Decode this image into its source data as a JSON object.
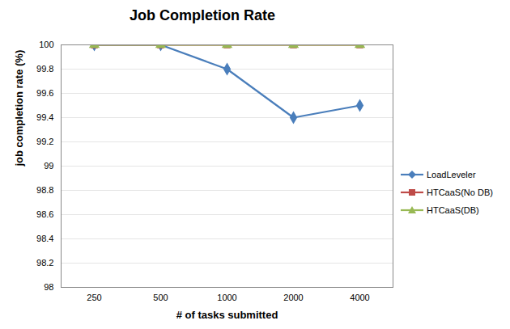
{
  "chart_data": {
    "type": "line",
    "title": "Job Completion Rate",
    "x_label": "# of tasks submitted",
    "y_label": "job completion rate (%)",
    "categories": [
      "250",
      "500",
      "1000",
      "2000",
      "4000"
    ],
    "series": [
      {
        "name": "LoadLeveler",
        "color": "#4a7ebb",
        "marker": "diamond",
        "line_style": "solid",
        "values": [
          100,
          100,
          99.8,
          99.4,
          99.5
        ]
      },
      {
        "name": "HTCaaS(No DB)",
        "color": "#be4b48",
        "marker": "square",
        "line_style": "solid",
        "values": [
          100,
          100,
          100,
          100,
          100
        ]
      },
      {
        "name": "HTCaaS(DB)",
        "color": "#98b954",
        "marker": "triangle",
        "line_style": "solid",
        "values": [
          100,
          100,
          100,
          100,
          100
        ]
      }
    ],
    "ylim": [
      98,
      100
    ],
    "yticks": [
      98,
      98.2,
      98.4,
      98.6,
      98.8,
      99,
      99.2,
      99.4,
      99.6,
      99.8,
      100
    ],
    "grid": true,
    "legend": "right"
  }
}
